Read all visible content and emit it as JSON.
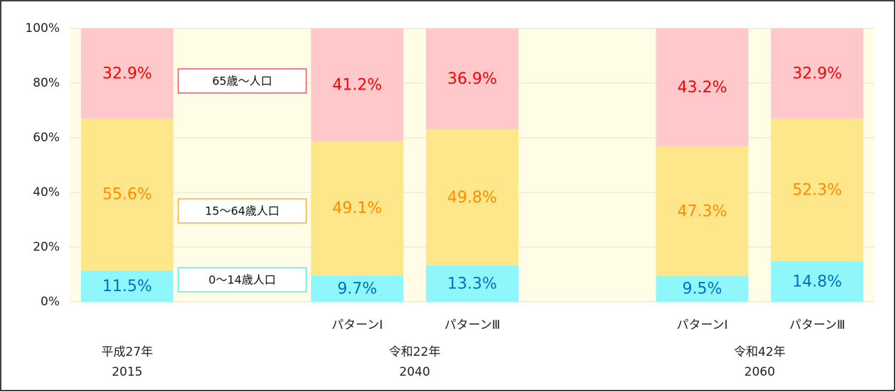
{
  "chart_data": {
    "type": "stacked-bar",
    "categories": [
      null,
      null,
      "パターンⅠ",
      "パターンⅢ",
      null,
      "パターンⅠ",
      "パターンⅢ"
    ],
    "groups": [
      {
        "name": "平成27年",
        "year": "2015"
      },
      {
        "name": "令和22年",
        "year": "2040"
      },
      {
        "name": "令和42年",
        "year": "2060"
      }
    ],
    "series": [
      {
        "name": "0～14歳人口",
        "color": "#8ff7fb",
        "label_color": "#0070c0",
        "border_color": "#66e6ee",
        "values": [
          11.5,
          null,
          9.7,
          13.3,
          null,
          9.5,
          14.8
        ],
        "value_labels": [
          "11.5%",
          null,
          "9.7%",
          "13.3%",
          null,
          "9.5%",
          "14.8%"
        ]
      },
      {
        "name": "15～64歳人口",
        "color": "#fde78a",
        "label_color": "#ff8c00",
        "border_color": "#f5b041",
        "values": [
          55.6,
          null,
          49.1,
          49.8,
          null,
          47.3,
          52.3
        ],
        "value_labels": [
          "55.6%",
          null,
          "49.1%",
          "49.8%",
          null,
          "47.3%",
          "52.3%"
        ]
      },
      {
        "name": "65歳～人口",
        "color": "#ffc9cc",
        "label_color": "#ff0000",
        "border_color": "#e8566e",
        "values": [
          32.9,
          null,
          41.2,
          36.9,
          null,
          43.2,
          32.9
        ],
        "value_labels": [
          "32.9%",
          null,
          "41.2%",
          "36.9%",
          null,
          "43.2%",
          "32.9%"
        ]
      }
    ],
    "ylim": [
      0,
      100
    ],
    "yticks": [
      {
        "value": 0,
        "label": "0%"
      },
      {
        "value": 20,
        "label": "20%"
      },
      {
        "value": 40,
        "label": "40%"
      },
      {
        "value": 60,
        "label": "60%"
      },
      {
        "value": 80,
        "label": "80%"
      },
      {
        "value": 100,
        "label": "100%"
      }
    ],
    "grid": true,
    "plot_background": "#fffde6"
  }
}
